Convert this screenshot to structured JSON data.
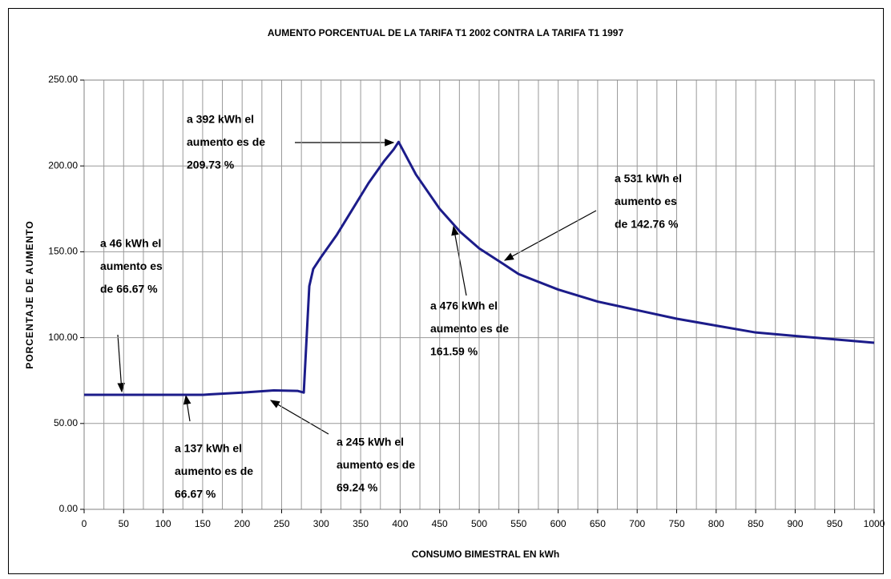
{
  "chart_data": {
    "type": "line",
    "title": "AUMENTO PORCENTUAL DE LA TARIFA T1 2002 CONTRA LA TARIFA T1 1997",
    "xlabel": "CONSUMO BIMESTRAL EN kWh",
    "ylabel": "PORCENTAJE DE AUMENTO",
    "color": "#1c1c8a",
    "x": [
      0,
      50,
      100,
      150,
      160,
      200,
      240,
      270,
      278,
      285,
      290,
      300,
      320,
      340,
      360,
      380,
      392,
      398,
      420,
      450,
      476,
      500,
      531,
      550,
      600,
      650,
      700,
      750,
      800,
      850,
      900,
      950,
      1000
    ],
    "values": [
      66.67,
      66.67,
      66.67,
      66.67,
      67,
      68,
      69.24,
      69,
      68,
      130,
      140,
      147,
      160,
      175,
      190,
      203,
      209.73,
      214,
      195,
      175,
      161.59,
      152,
      142.76,
      137,
      128,
      121,
      116,
      111,
      107,
      103,
      101,
      99,
      97
    ],
    "xlim": [
      0,
      1000
    ],
    "xticks": [
      0,
      50,
      100,
      150,
      200,
      250,
      300,
      350,
      400,
      450,
      500,
      550,
      600,
      650,
      700,
      750,
      800,
      850,
      900,
      950,
      1000
    ],
    "xminorticks": [
      25,
      75,
      125,
      175,
      225,
      275,
      325,
      375,
      425,
      475,
      525,
      575,
      625,
      675,
      725,
      775,
      825,
      875,
      925,
      975
    ],
    "ylim": [
      0,
      250
    ],
    "yticks": [
      {
        "value": 0,
        "label": "0.00"
      },
      {
        "value": 50,
        "label": "50.00"
      },
      {
        "value": 100,
        "label": "100.00"
      },
      {
        "value": 150,
        "label": "150.00"
      },
      {
        "value": 200,
        "label": "200.00"
      },
      {
        "value": 250,
        "label": "250.00"
      }
    ],
    "grid": true,
    "annotations": [
      {
        "lines": [
          "a 46 kWh el",
          "aumento es",
          "de 66.67 %"
        ]
      },
      {
        "lines": [
          "a 137 kWh el",
          "aumento es de",
          "66.67 %"
        ]
      },
      {
        "lines": [
          "a 245 kWh el",
          "aumento es de",
          "69.24 %"
        ]
      },
      {
        "lines": [
          "a 392 kWh el",
          "aumento es de",
          "209.73 %"
        ]
      },
      {
        "lines": [
          "a 476 kWh el",
          "aumento es de",
          "161.59 %"
        ]
      },
      {
        "lines": [
          "a 531 kWh el",
          "aumento es",
          "de 142.76 %"
        ]
      }
    ]
  }
}
